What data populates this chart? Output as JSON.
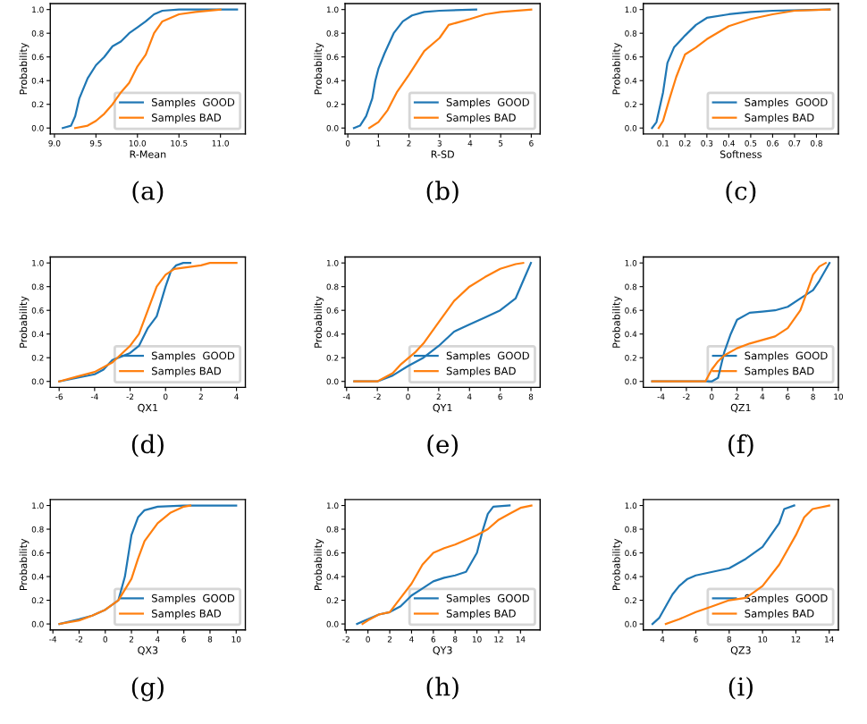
{
  "chart_data": [
    {
      "type": "line",
      "xlabel": "R-Mean",
      "ylabel": "Probability",
      "annotations": [
        "(a)"
      ],
      "legend": "lower right",
      "grid": false,
      "xlim": [
        8.95,
        11.3
      ],
      "ylim": [
        -0.05,
        1.05
      ],
      "xticks": [
        {
          "value": 9.0,
          "label": "9.0"
        },
        {
          "value": 9.5,
          "label": "9.5"
        },
        {
          "value": 10.0,
          "label": "10.0"
        },
        {
          "value": 10.5,
          "label": "10.5"
        },
        {
          "value": 11.0,
          "label": "11.0"
        }
      ],
      "yticks": [
        {
          "value": 0,
          "label": "0.0"
        },
        {
          "value": 0.2,
          "label": "0.2"
        },
        {
          "value": 0.4,
          "label": "0.4"
        },
        {
          "value": 0.6,
          "label": "0.6"
        },
        {
          "value": 0.8,
          "label": "0.8"
        },
        {
          "value": 1,
          "label": "1.0"
        }
      ],
      "series": [
        {
          "name": "Samples  GOOD",
          "color": "#1f77b4",
          "x": [
            9.1,
            9.2,
            9.25,
            9.3,
            9.4,
            9.5,
            9.6,
            9.7,
            9.8,
            9.9,
            10.0,
            10.1,
            10.2,
            10.3,
            10.5,
            11.2
          ],
          "values": [
            0,
            0.02,
            0.1,
            0.25,
            0.42,
            0.53,
            0.6,
            0.69,
            0.73,
            0.8,
            0.85,
            0.9,
            0.96,
            0.99,
            1.0,
            1.0
          ]
        },
        {
          "name": "Samples BAD",
          "color": "#ff7f0e",
          "x": [
            9.25,
            9.4,
            9.5,
            9.6,
            9.7,
            9.8,
            9.9,
            10.0,
            10.1,
            10.2,
            10.3,
            10.5,
            10.7,
            11.0
          ],
          "values": [
            0,
            0.02,
            0.06,
            0.12,
            0.2,
            0.3,
            0.38,
            0.52,
            0.62,
            0.8,
            0.9,
            0.96,
            0.98,
            1.0
          ]
        }
      ]
    },
    {
      "type": "line",
      "xlabel": "R-SD",
      "ylabel": "Probability",
      "annotations": [
        "(b)"
      ],
      "legend": "lower right",
      "grid": false,
      "xlim": [
        -0.09,
        6.29
      ],
      "ylim": [
        -0.05,
        1.05
      ],
      "xticks": [
        0,
        1,
        2,
        3,
        4,
        5,
        6
      ],
      "yticks": [
        {
          "value": 0,
          "label": "0.0"
        },
        {
          "value": 0.2,
          "label": "0.2"
        },
        {
          "value": 0.4,
          "label": "0.4"
        },
        {
          "value": 0.6,
          "label": "0.6"
        },
        {
          "value": 0.8,
          "label": "0.8"
        },
        {
          "value": 1,
          "label": "1.0"
        }
      ],
      "series": [
        {
          "name": "Samples  GOOD",
          "color": "#1f77b4",
          "x": [
            0.2,
            0.4,
            0.6,
            0.8,
            0.9,
            1.0,
            1.2,
            1.5,
            1.8,
            2.1,
            2.5,
            3.0,
            4.2
          ],
          "values": [
            0,
            0.02,
            0.1,
            0.25,
            0.4,
            0.5,
            0.63,
            0.8,
            0.9,
            0.95,
            0.98,
            0.99,
            1.0
          ]
        },
        {
          "name": "Samples BAD",
          "color": "#ff7f0e",
          "x": [
            0.7,
            1.0,
            1.3,
            1.6,
            2.0,
            2.5,
            3.0,
            3.3,
            4.0,
            4.5,
            5.0,
            6.0
          ],
          "values": [
            0,
            0.05,
            0.15,
            0.3,
            0.45,
            0.65,
            0.76,
            0.87,
            0.92,
            0.96,
            0.98,
            1.0
          ]
        }
      ]
    },
    {
      "type": "line",
      "xlabel": "Softness",
      "ylabel": "Probability",
      "annotations": [
        "(c)"
      ],
      "legend": "lower right",
      "grid": false,
      "xlim": [
        0.01,
        0.9
      ],
      "ylim": [
        -0.05,
        1.05
      ],
      "xticks": [
        0.1,
        0.2,
        0.3,
        0.4,
        0.5,
        0.6,
        0.7,
        0.8
      ],
      "yticks": [
        {
          "value": 0,
          "label": "0.0"
        },
        {
          "value": 0.2,
          "label": "0.2"
        },
        {
          "value": 0.4,
          "label": "0.4"
        },
        {
          "value": 0.6,
          "label": "0.6"
        },
        {
          "value": 0.8,
          "label": "0.8"
        },
        {
          "value": 1,
          "label": "1.0"
        }
      ],
      "series": [
        {
          "name": "Samples  GOOD",
          "color": "#1f77b4",
          "x": [
            0.05,
            0.07,
            0.1,
            0.12,
            0.15,
            0.2,
            0.25,
            0.3,
            0.4,
            0.5,
            0.6,
            0.86
          ],
          "values": [
            0,
            0.05,
            0.3,
            0.55,
            0.68,
            0.78,
            0.87,
            0.93,
            0.96,
            0.98,
            0.99,
            1.0
          ]
        },
        {
          "name": "Samples BAD",
          "color": "#ff7f0e",
          "x": [
            0.08,
            0.1,
            0.13,
            0.16,
            0.2,
            0.25,
            0.3,
            0.4,
            0.5,
            0.6,
            0.7,
            0.86
          ],
          "values": [
            0,
            0.06,
            0.25,
            0.43,
            0.62,
            0.68,
            0.75,
            0.86,
            0.92,
            0.96,
            0.99,
            1.0
          ]
        }
      ]
    },
    {
      "type": "line",
      "xlabel": "QX1",
      "ylabel": "Probability",
      "annotations": [
        "(d)"
      ],
      "legend": "lower right",
      "grid": false,
      "xlim": [
        -6.5,
        4.5
      ],
      "ylim": [
        -0.05,
        1.05
      ],
      "xticks": [
        -6,
        -4,
        -2,
        0,
        2,
        4
      ],
      "yticks": [
        {
          "value": 0,
          "label": "0.0"
        },
        {
          "value": 0.2,
          "label": "0.2"
        },
        {
          "value": 0.4,
          "label": "0.4"
        },
        {
          "value": 0.6,
          "label": "0.6"
        },
        {
          "value": 0.8,
          "label": "0.8"
        },
        {
          "value": 1,
          "label": "1.0"
        }
      ],
      "series": [
        {
          "name": "Samples  GOOD",
          "color": "#1f77b4",
          "x": [
            -6,
            -5,
            -4,
            -3.5,
            -3,
            -2,
            -1.5,
            -1,
            -0.5,
            0,
            0.3,
            0.6,
            1.0,
            1.4
          ],
          "values": [
            0,
            0.03,
            0.06,
            0.1,
            0.18,
            0.24,
            0.3,
            0.45,
            0.55,
            0.8,
            0.93,
            0.98,
            1.0,
            1.0
          ]
        },
        {
          "name": "Samples BAD",
          "color": "#ff7f0e",
          "x": [
            -6,
            -5,
            -4,
            -3,
            -2,
            -1.5,
            -1,
            -0.5,
            0,
            0.5,
            2,
            2.5,
            4
          ],
          "values": [
            0,
            0.04,
            0.08,
            0.16,
            0.3,
            0.4,
            0.6,
            0.8,
            0.9,
            0.95,
            0.98,
            1.0,
            1.0
          ]
        }
      ]
    },
    {
      "type": "line",
      "xlabel": "QY1",
      "ylabel": "Probability",
      "annotations": [
        "(e)"
      ],
      "legend": "lower right",
      "grid": false,
      "xlim": [
        -4.1,
        8.6
      ],
      "ylim": [
        -0.05,
        1.05
      ],
      "xticks": [
        -4,
        -2,
        0,
        2,
        4,
        6,
        8
      ],
      "yticks": [
        {
          "value": 0,
          "label": "0.0"
        },
        {
          "value": 0.2,
          "label": "0.2"
        },
        {
          "value": 0.4,
          "label": "0.4"
        },
        {
          "value": 0.6,
          "label": "0.6"
        },
        {
          "value": 0.8,
          "label": "0.8"
        },
        {
          "value": 1,
          "label": "1.0"
        }
      ],
      "series": [
        {
          "name": "Samples  GOOD",
          "color": "#1f77b4",
          "x": [
            -3.5,
            -2,
            -1,
            0,
            1,
            2,
            3,
            4,
            5,
            6,
            7,
            7.5,
            8
          ],
          "values": [
            0,
            0.0,
            0.05,
            0.13,
            0.2,
            0.3,
            0.42,
            0.48,
            0.54,
            0.6,
            0.7,
            0.85,
            1.0
          ]
        },
        {
          "name": "Samples BAD",
          "color": "#ff7f0e",
          "x": [
            -3.5,
            -2,
            -1,
            -0.5,
            0.5,
            1,
            2,
            3,
            4,
            5,
            6,
            7,
            7.5
          ],
          "values": [
            0,
            0.0,
            0.07,
            0.14,
            0.25,
            0.32,
            0.5,
            0.68,
            0.8,
            0.88,
            0.95,
            0.99,
            1.0
          ]
        }
      ]
    },
    {
      "type": "line",
      "xlabel": "QZ1",
      "ylabel": "Probability",
      "annotations": [
        "(f)"
      ],
      "legend": "lower right",
      "grid": false,
      "xlim": [
        -5.4,
        10.0
      ],
      "ylim": [
        -0.05,
        1.05
      ],
      "xticks": [
        -4,
        -2,
        0,
        2,
        4,
        6,
        8,
        10
      ],
      "yticks": [
        {
          "value": 0,
          "label": "0.0"
        },
        {
          "value": 0.2,
          "label": "0.2"
        },
        {
          "value": 0.4,
          "label": "0.4"
        },
        {
          "value": 0.6,
          "label": "0.6"
        },
        {
          "value": 0.8,
          "label": "0.8"
        },
        {
          "value": 1,
          "label": "1.0"
        }
      ],
      "series": [
        {
          "name": "Samples  GOOD",
          "color": "#1f77b4",
          "x": [
            -4.7,
            0,
            0.5,
            1,
            1.5,
            2,
            3,
            4,
            5,
            6,
            7,
            8,
            8.5,
            9.3
          ],
          "values": [
            0,
            0,
            0.03,
            0.25,
            0.4,
            0.52,
            0.58,
            0.59,
            0.6,
            0.63,
            0.7,
            0.77,
            0.85,
            1.0
          ]
        },
        {
          "name": "Samples BAD",
          "color": "#ff7f0e",
          "x": [
            -4.7,
            -0.5,
            0,
            0.5,
            1,
            2,
            3,
            4,
            5,
            6,
            7,
            7.5,
            8,
            8.5,
            9
          ],
          "values": [
            0,
            0,
            0.1,
            0.17,
            0.22,
            0.28,
            0.32,
            0.35,
            0.38,
            0.45,
            0.6,
            0.75,
            0.9,
            0.97,
            1.0
          ]
        }
      ]
    },
    {
      "type": "line",
      "xlabel": "QX3",
      "ylabel": "Probability",
      "annotations": [
        "(g)"
      ],
      "legend": "lower right",
      "grid": false,
      "xlim": [
        -4.2,
        10.7
      ],
      "ylim": [
        -0.05,
        1.05
      ],
      "xticks": [
        -4,
        -2,
        0,
        2,
        4,
        6,
        8,
        10
      ],
      "yticks": [
        {
          "value": 0,
          "label": "0.0"
        },
        {
          "value": 0.2,
          "label": "0.2"
        },
        {
          "value": 0.4,
          "label": "0.4"
        },
        {
          "value": 0.6,
          "label": "0.6"
        },
        {
          "value": 0.8,
          "label": "0.8"
        },
        {
          "value": 1,
          "label": "1.0"
        }
      ],
      "series": [
        {
          "name": "Samples  GOOD",
          "color": "#1f77b4",
          "x": [
            -3.5,
            -2,
            -1,
            0,
            1,
            1.5,
            2,
            2.5,
            3,
            4,
            6,
            10
          ],
          "values": [
            0,
            0.04,
            0.07,
            0.12,
            0.2,
            0.4,
            0.75,
            0.9,
            0.96,
            0.99,
            1.0,
            1.0
          ]
        },
        {
          "name": "Samples BAD",
          "color": "#ff7f0e",
          "x": [
            -3.5,
            -2,
            -1,
            0,
            1,
            2,
            2.5,
            3,
            4,
            5,
            6,
            6.5
          ],
          "values": [
            0,
            0.03,
            0.07,
            0.12,
            0.2,
            0.38,
            0.55,
            0.7,
            0.85,
            0.94,
            0.99,
            1.0
          ]
        }
      ]
    },
    {
      "type": "line",
      "xlabel": "QY3",
      "ylabel": "Probability",
      "annotations": [
        "(h)"
      ],
      "legend": "lower right",
      "grid": false,
      "xlim": [
        -2.1,
        15.8
      ],
      "ylim": [
        -0.05,
        1.05
      ],
      "xticks": [
        -2,
        0,
        2,
        4,
        6,
        8,
        10,
        12,
        14
      ],
      "yticks": [
        {
          "value": 0,
          "label": "0.0"
        },
        {
          "value": 0.2,
          "label": "0.2"
        },
        {
          "value": 0.4,
          "label": "0.4"
        },
        {
          "value": 0.6,
          "label": "0.6"
        },
        {
          "value": 0.8,
          "label": "0.8"
        },
        {
          "value": 1,
          "label": "1.0"
        }
      ],
      "series": [
        {
          "name": "Samples  GOOD",
          "color": "#1f77b4",
          "x": [
            -1,
            0,
            1,
            2,
            3,
            4,
            5,
            6,
            7,
            8,
            9,
            10,
            10.5,
            11,
            11.5,
            13
          ],
          "values": [
            0,
            0.04,
            0.08,
            0.1,
            0.15,
            0.24,
            0.3,
            0.36,
            0.39,
            0.41,
            0.44,
            0.6,
            0.78,
            0.93,
            0.99,
            1.0
          ]
        },
        {
          "name": "Samples BAD",
          "color": "#ff7f0e",
          "x": [
            -0.5,
            0,
            1,
            2,
            3,
            4,
            5,
            6,
            7,
            8,
            9,
            10,
            11,
            12,
            13,
            14,
            15
          ],
          "values": [
            0,
            0.03,
            0.08,
            0.1,
            0.22,
            0.34,
            0.5,
            0.6,
            0.64,
            0.67,
            0.71,
            0.75,
            0.8,
            0.88,
            0.93,
            0.98,
            1.0
          ]
        }
      ]
    },
    {
      "type": "line",
      "xlabel": "QZ3",
      "ylabel": "Probability",
      "annotations": [
        "(i)"
      ],
      "legend": "lower right",
      "grid": false,
      "xlim": [
        2.85,
        14.55
      ],
      "ylim": [
        -0.05,
        1.05
      ],
      "xticks": [
        4,
        6,
        8,
        10,
        12,
        14
      ],
      "yticks": [
        {
          "value": 0,
          "label": "0.0"
        },
        {
          "value": 0.2,
          "label": "0.2"
        },
        {
          "value": 0.4,
          "label": "0.4"
        },
        {
          "value": 0.6,
          "label": "0.6"
        },
        {
          "value": 0.8,
          "label": "0.8"
        },
        {
          "value": 1,
          "label": "1.0"
        }
      ],
      "series": [
        {
          "name": "Samples  GOOD",
          "color": "#1f77b4",
          "x": [
            3.4,
            3.8,
            4.2,
            4.6,
            5,
            5.5,
            6,
            7,
            8,
            9,
            10,
            10.5,
            11,
            11.3,
            11.9
          ],
          "values": [
            0,
            0.05,
            0.15,
            0.25,
            0.32,
            0.38,
            0.41,
            0.44,
            0.47,
            0.55,
            0.65,
            0.75,
            0.85,
            0.97,
            1.0
          ]
        },
        {
          "name": "Samples BAD",
          "color": "#ff7f0e",
          "x": [
            4.2,
            5,
            6,
            7,
            8,
            9,
            9.5,
            10,
            11,
            12,
            12.5,
            13,
            14
          ],
          "values": [
            0,
            0.04,
            0.1,
            0.15,
            0.2,
            0.22,
            0.27,
            0.32,
            0.5,
            0.75,
            0.9,
            0.97,
            1.0
          ]
        }
      ]
    }
  ]
}
